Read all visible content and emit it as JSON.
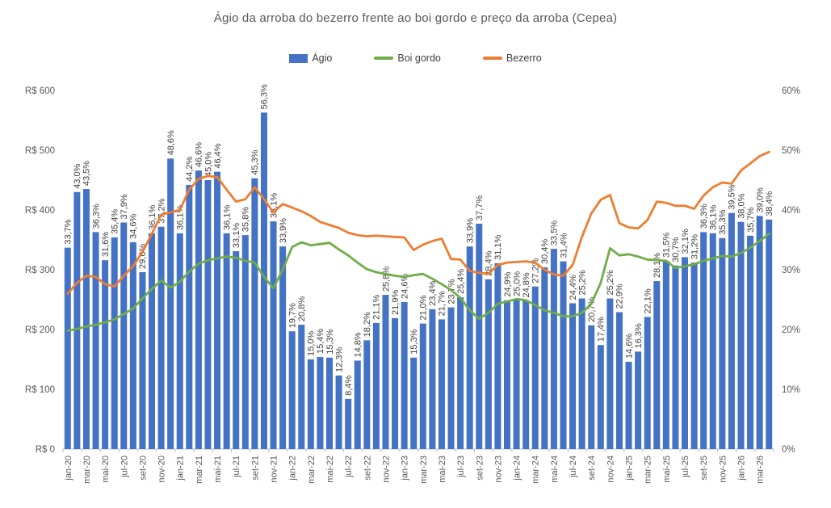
{
  "chart_data": {
    "type": "combo-bar-line",
    "title": "Ágio da arroba do bezerro frente ao boi gordo e preço da arroba (Cepea)",
    "months": [
      "jan-20",
      "fev-20",
      "mar-20",
      "abr-20",
      "mai-20",
      "jun-20",
      "jul-20",
      "ago-20",
      "set-20",
      "out-20",
      "nov-20",
      "dez-20",
      "jan-21",
      "fev-21",
      "mar-21",
      "abr-21",
      "mai-21",
      "jun-21",
      "jul-21",
      "ago-21",
      "set-21",
      "out-21",
      "nov-21",
      "dez-21",
      "jan-22",
      "fev-22",
      "mar-22",
      "abr-22",
      "mai-22",
      "jun-22",
      "jul-22",
      "ago-22",
      "set-22",
      "out-22",
      "nov-22",
      "dez-22",
      "jan-23",
      "fev-23",
      "mar-23",
      "abr-23",
      "mai-23",
      "jun-23",
      "jul-23",
      "ago-23",
      "set-23",
      "out-23",
      "nov-23",
      "dez-23",
      "jan-24",
      "fev-24",
      "mar-24",
      "abr-24",
      "mai-24",
      "jun-24",
      "jul-24",
      "ago-24",
      "set-24",
      "out-24",
      "nov-24",
      "dez-24",
      "jan-25",
      "fev-25",
      "mar-25",
      "abr-25",
      "mai-25",
      "jun-25",
      "jul-25",
      "ago-25",
      "set-25",
      "out-25",
      "nov-25",
      "dez-25",
      "jan-26",
      "fev-26",
      "mar-26",
      "abr-26"
    ],
    "x_tick_every": 2,
    "series": [
      {
        "name": "Ágio",
        "type": "bar",
        "axis": "right",
        "color": "#4472C4",
        "data_labels": true,
        "values": [
          33.7,
          43.0,
          43.5,
          36.3,
          31.6,
          35.4,
          37.9,
          34.6,
          29.6,
          36.1,
          37.2,
          48.6,
          36.1,
          44.2,
          46.6,
          45.0,
          46.4,
          36.1,
          33.1,
          35.8,
          45.3,
          56.3,
          38.1,
          33.9,
          19.7,
          20.8,
          15.0,
          15.4,
          15.3,
          12.3,
          8.4,
          14.8,
          18.2,
          21.1,
          25.8,
          21.9,
          24.6,
          15.3,
          21.0,
          23.4,
          21.7,
          23.7,
          25.4,
          33.9,
          37.7,
          28.4,
          31.1,
          24.9,
          25.0,
          24.8,
          27.2,
          30.4,
          33.5,
          31.4,
          24.4,
          25.2,
          20.7,
          17.4,
          25.2,
          22.9,
          14.6,
          16.3,
          22.1,
          28.1,
          31.5,
          30.7,
          32.1,
          31.2,
          36.3,
          36.1,
          35.3,
          39.5,
          38.0,
          35.7,
          39.0,
          38.4
        ]
      },
      {
        "name": "Boi gordo",
        "type": "line",
        "axis": "left",
        "color": "#70AD47",
        "data_labels": false,
        "values": [
          198,
          201,
          205,
          208,
          212,
          217,
          226,
          235,
          252,
          268,
          282,
          270,
          280,
          297,
          310,
          316,
          319,
          322,
          320,
          315,
          312,
          288,
          269,
          300,
          338,
          346,
          341,
          343,
          345,
          334,
          324,
          312,
          301,
          296,
          293,
          290,
          288,
          291,
          293,
          285,
          276,
          266,
          253,
          232,
          218,
          228,
          243,
          247,
          251,
          249,
          241,
          232,
          228,
          222,
          222,
          228,
          243,
          278,
          336,
          324,
          326,
          322,
          317,
          316,
          315,
          303,
          306,
          309,
          315,
          319,
          323,
          322,
          328,
          337,
          348,
          360
        ]
      },
      {
        "name": "Bezerro",
        "type": "line",
        "axis": "left",
        "color": "#ED7D31",
        "data_labels": false,
        "values": [
          260,
          278,
          290,
          288,
          276,
          272,
          290,
          306,
          330,
          360,
          392,
          396,
          400,
          434,
          452,
          457,
          455,
          434,
          414,
          418,
          438,
          418,
          396,
          410,
          404,
          398,
          390,
          380,
          375,
          370,
          362,
          358,
          356,
          357,
          356,
          355,
          354,
          333,
          342,
          348,
          352,
          318,
          317,
          298,
          295,
          293,
          308,
          312,
          313,
          314,
          312,
          300,
          292,
          290,
          308,
          355,
          394,
          417,
          425,
          378,
          371,
          369,
          383,
          414,
          412,
          407,
          407,
          402,
          424,
          438,
          446,
          444,
          466,
          478,
          490,
          497
        ]
      }
    ],
    "left_axis": {
      "min": 0,
      "max": 600,
      "step": 100,
      "tick_labels": [
        "R$ 0",
        "R$ 100",
        "R$ 200",
        "R$ 300",
        "R$ 400",
        "R$ 500",
        "R$ 600"
      ]
    },
    "right_axis": {
      "min": 0,
      "max": 60,
      "step": 10,
      "tick_labels": [
        "0%",
        "10%",
        "20%",
        "30%",
        "40%",
        "50%",
        "60%"
      ]
    },
    "style": {
      "bar_color": "#4472C4",
      "boi_gordo_color": "#70AD47",
      "bezerro_color": "#ED7D31",
      "data_label_color": "#404040",
      "axis_text_color": "#595959",
      "axis_line_color": "#BFBFBF",
      "grid": "off",
      "legend_position": "top"
    }
  }
}
